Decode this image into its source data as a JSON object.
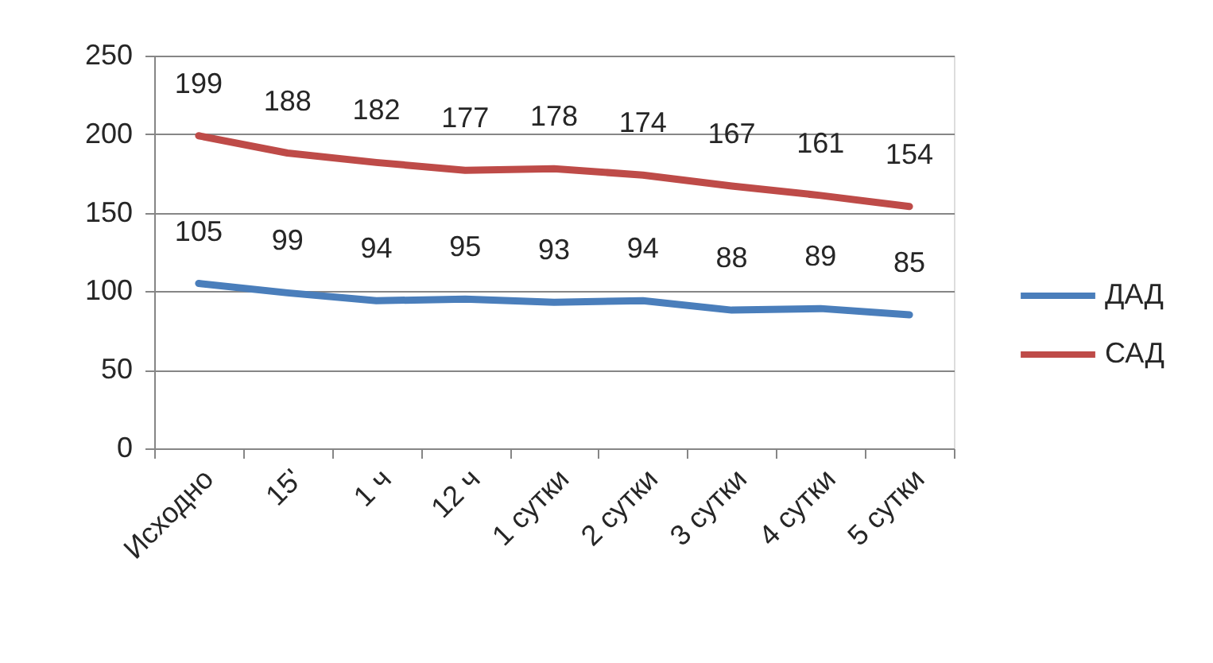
{
  "chart_data": {
    "type": "line",
    "categories": [
      "Исходно",
      "15'",
      "1 ч",
      "12 ч",
      "1 сутки",
      "2 сутки",
      "3 сутки",
      "4 сутки",
      "5 сутки"
    ],
    "series": [
      {
        "name": "ДАД",
        "color": "#4a7ebb",
        "values": [
          105,
          99,
          94,
          95,
          93,
          94,
          88,
          89,
          85
        ]
      },
      {
        "name": "САД",
        "color": "#be4b48",
        "values": [
          199,
          188,
          182,
          177,
          178,
          174,
          167,
          161,
          154
        ]
      }
    ],
    "ylim": [
      0,
      250
    ],
    "yticks": [
      0,
      50,
      100,
      150,
      200,
      250
    ],
    "grid": "y",
    "legend": "right",
    "data_labels": true,
    "line_style": "solid"
  }
}
